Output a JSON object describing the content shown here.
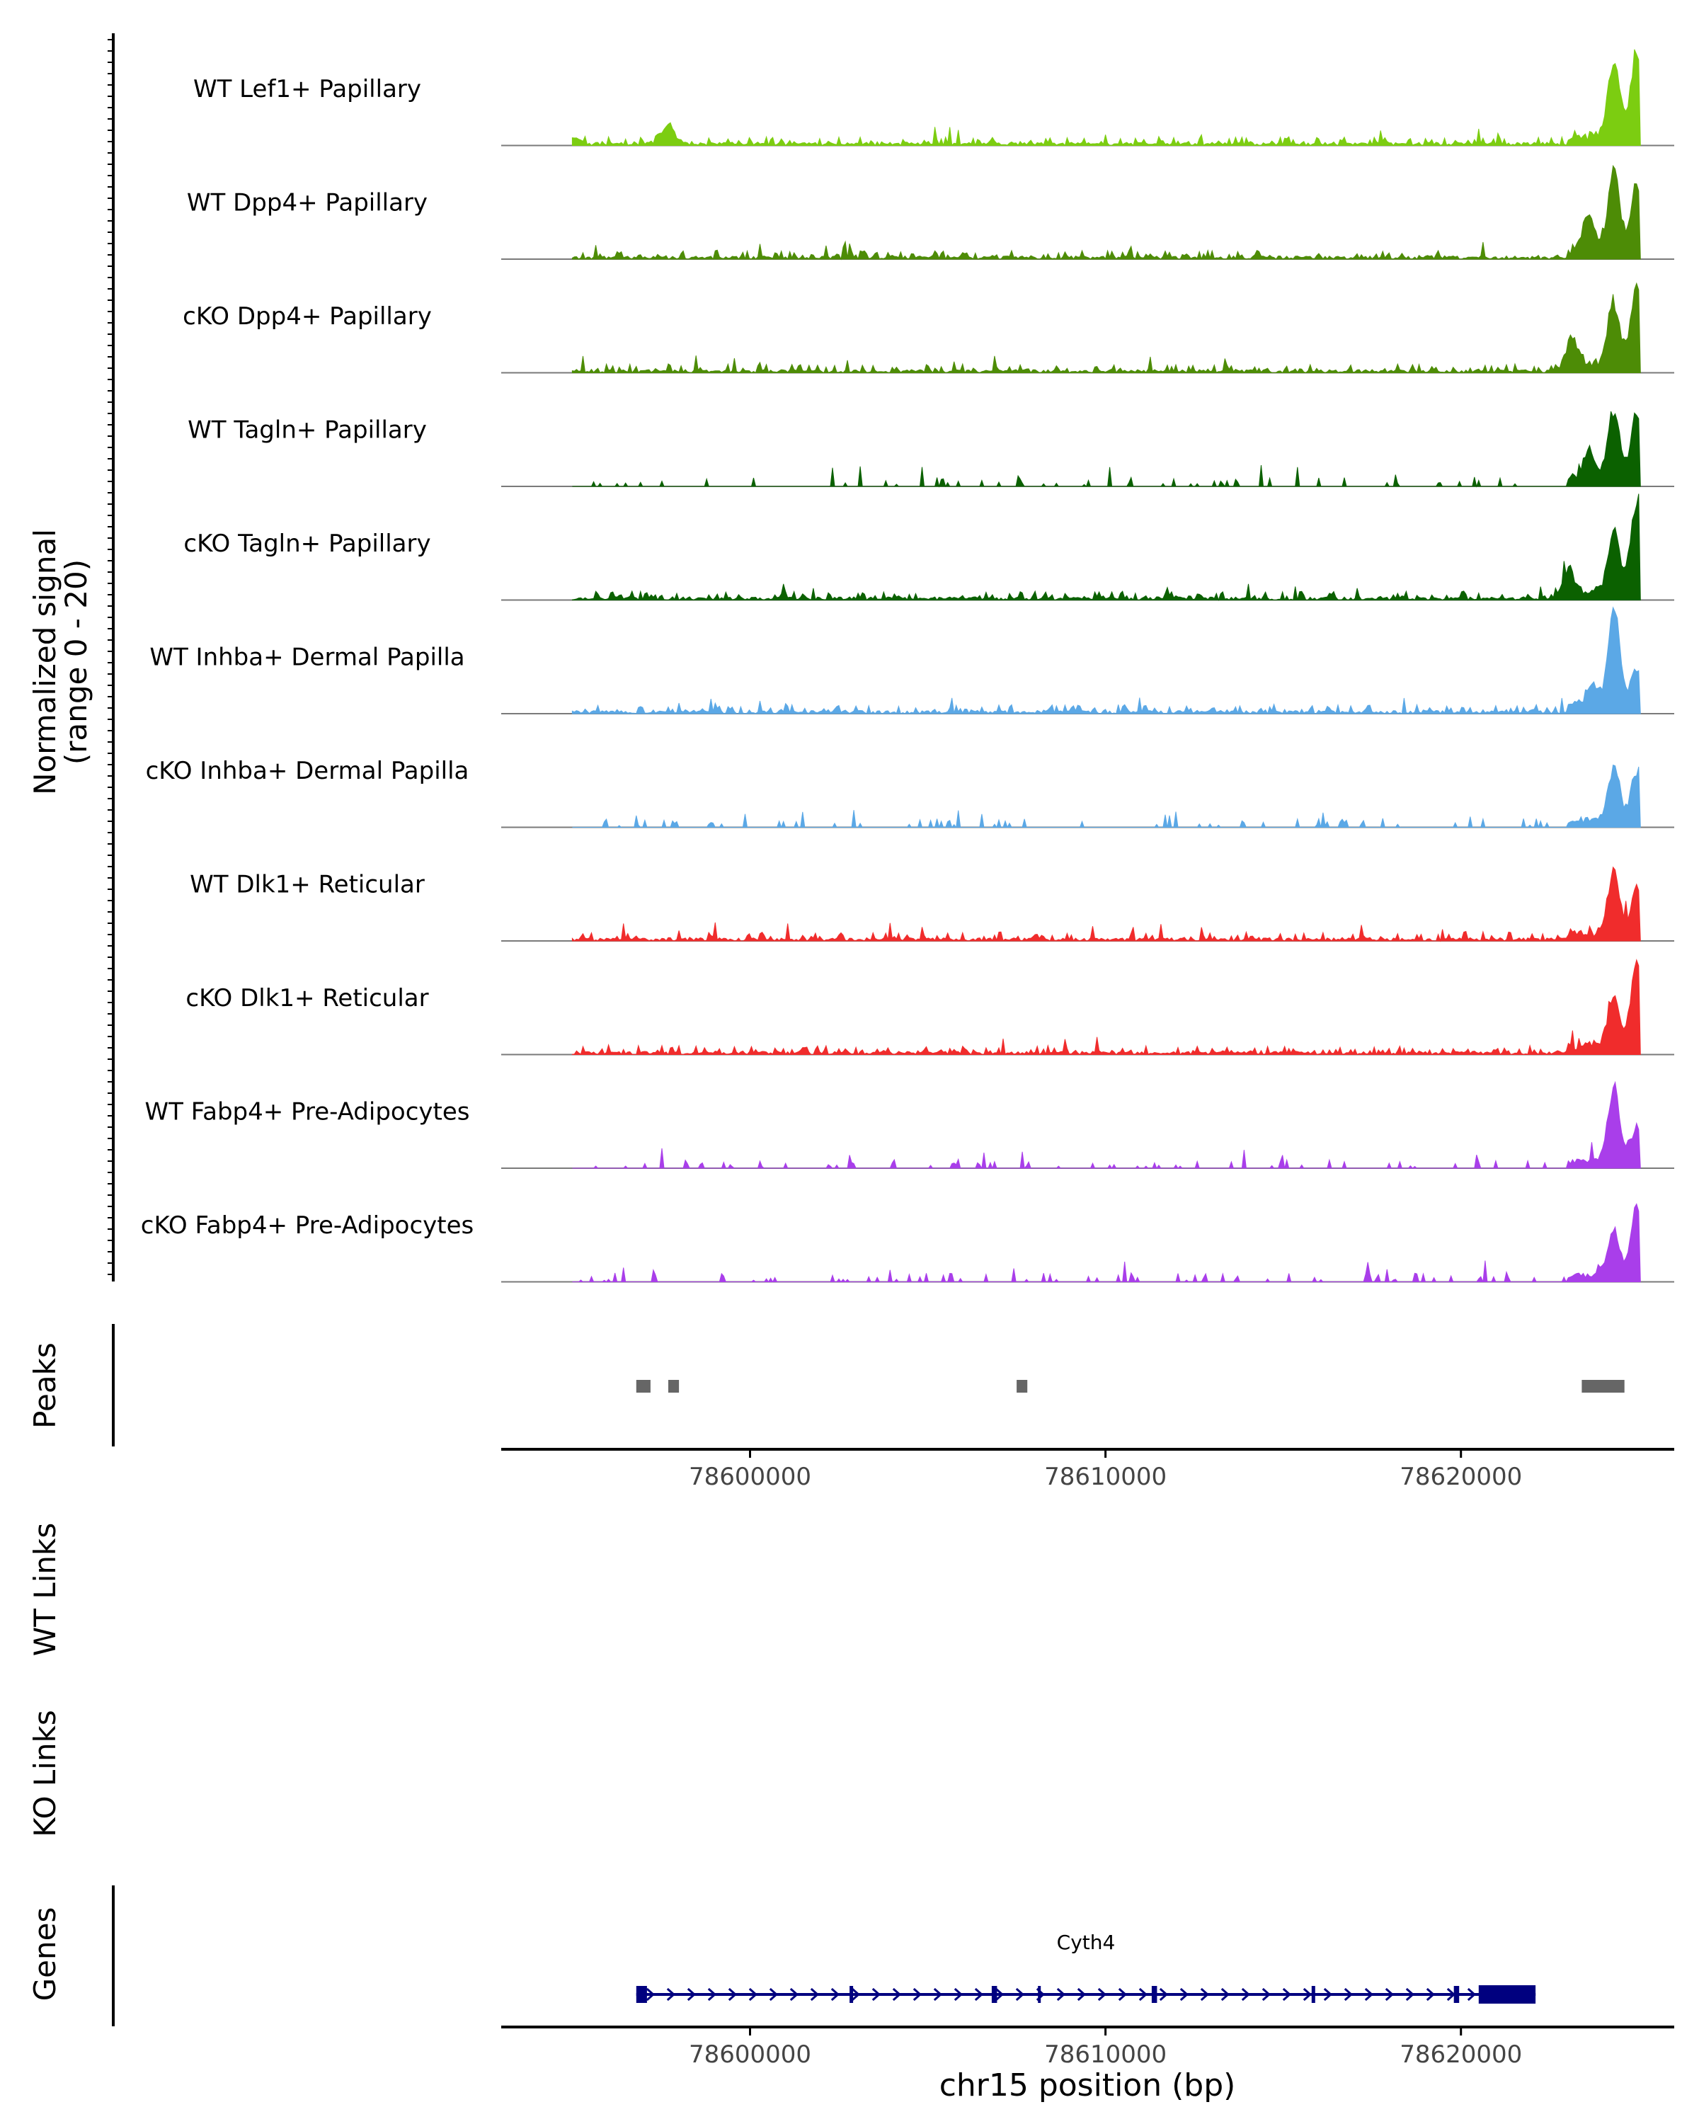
{
  "chart_data": {
    "type": "area",
    "title": "",
    "chromosome": "chr15",
    "xlabel": "chr15 position (bp)",
    "xlim": [
      78593000,
      78626000
    ],
    "xticks": [
      78600000,
      78610000,
      78620000
    ],
    "xtick_labels": [
      "78600000",
      "78610000",
      "78620000"
    ],
    "ylabel_line1": "Normalized signal",
    "ylabel_line2": "(range 0 - 20)",
    "yrange": [
      0,
      20
    ],
    "coverage_tracks": [
      {
        "name": "WT Lef1+ Papillary",
        "color": "#7CCD11",
        "sparse": false,
        "seed": 11,
        "peaks": [
          [
            78595000,
            1.5
          ],
          [
            78597700,
            4.0
          ],
          [
            78624300,
            16.0
          ],
          [
            78624950,
            18.0
          ]
        ]
      },
      {
        "name": "WT Dpp4+ Papillary",
        "color": "#4D8C06",
        "sparse": false,
        "seed": 23,
        "peaks": [
          [
            78623600,
            7.0
          ],
          [
            78624300,
            16.0
          ],
          [
            78624950,
            13.0
          ]
        ]
      },
      {
        "name": "cKO Dpp4+ Papillary",
        "color": "#4D8C06",
        "sparse": false,
        "seed": 37,
        "peaks": [
          [
            78623100,
            6.0
          ],
          [
            78624300,
            13.0
          ],
          [
            78624950,
            16.0
          ]
        ]
      },
      {
        "name": "WT Tagln+ Papillary",
        "color": "#0B6100",
        "sparse": true,
        "seed": 41,
        "peaks": [
          [
            78623600,
            6.0
          ],
          [
            78624300,
            14.0
          ],
          [
            78624950,
            14.0
          ]
        ]
      },
      {
        "name": "cKO Tagln+ Papillary",
        "color": "#0B6100",
        "sparse": false,
        "seed": 53,
        "peaks": [
          [
            78623000,
            5.0
          ],
          [
            78624300,
            12.0
          ],
          [
            78624950,
            19.0
          ]
        ]
      },
      {
        "name": "WT Inhba+ Dermal Papilla",
        "color": "#5BA8E6",
        "sparse": false,
        "seed": 61,
        "peaks": [
          [
            78623700,
            4.0
          ],
          [
            78624300,
            20.0
          ],
          [
            78624950,
            7.0
          ]
        ]
      },
      {
        "name": "cKO Inhba+ Dermal Papilla",
        "color": "#5BA8E6",
        "sparse": true,
        "seed": 71,
        "peaks": [
          [
            78624300,
            10.0
          ],
          [
            78624950,
            10.0
          ]
        ]
      },
      {
        "name": "WT Dlk1+ Reticular",
        "color": "#F02C2C",
        "sparse": false,
        "seed": 83,
        "peaks": [
          [
            78624300,
            12.0
          ],
          [
            78624950,
            9.0
          ]
        ]
      },
      {
        "name": "cKO Dlk1+ Reticular",
        "color": "#F02C2C",
        "sparse": false,
        "seed": 97,
        "peaks": [
          [
            78624300,
            10.0
          ],
          [
            78624950,
            17.0
          ]
        ]
      },
      {
        "name": "WT Fabp4+ Pre-Adipocytes",
        "color": "#A93EEA",
        "sparse": true,
        "seed": 101,
        "peaks": [
          [
            78624300,
            15.0
          ],
          [
            78624950,
            7.0
          ]
        ]
      },
      {
        "name": "cKO Fabp4+ Pre-Adipocytes",
        "color": "#A93EEA",
        "sparse": true,
        "seed": 113,
        "peaks": [
          [
            78624300,
            9.0
          ],
          [
            78624950,
            14.0
          ]
        ]
      }
    ],
    "peaks_track": {
      "label": "Peaks",
      "regions": [
        [
          78596800,
          78597200
        ],
        [
          78597700,
          78598000
        ],
        [
          78607500,
          78607800
        ],
        [
          78623400,
          78624600
        ]
      ]
    },
    "links_tracks": [
      {
        "label": "WT Links",
        "links": []
      },
      {
        "label": "KO Links",
        "links": []
      }
    ],
    "genes_track": {
      "label": "Genes",
      "genes": [
        {
          "name": "Cyth4",
          "start": 78596800,
          "end": 78622100,
          "strand": "+",
          "exons": [
            [
              78596800,
              78597100
            ],
            [
              78602800,
              78602900
            ],
            [
              78606800,
              78606950
            ],
            [
              78608100,
              78608180
            ],
            [
              78611300,
              78611450
            ],
            [
              78615800,
              78615900
            ],
            [
              78619800,
              78619950
            ],
            [
              78620500,
              78622100
            ]
          ]
        }
      ]
    }
  }
}
